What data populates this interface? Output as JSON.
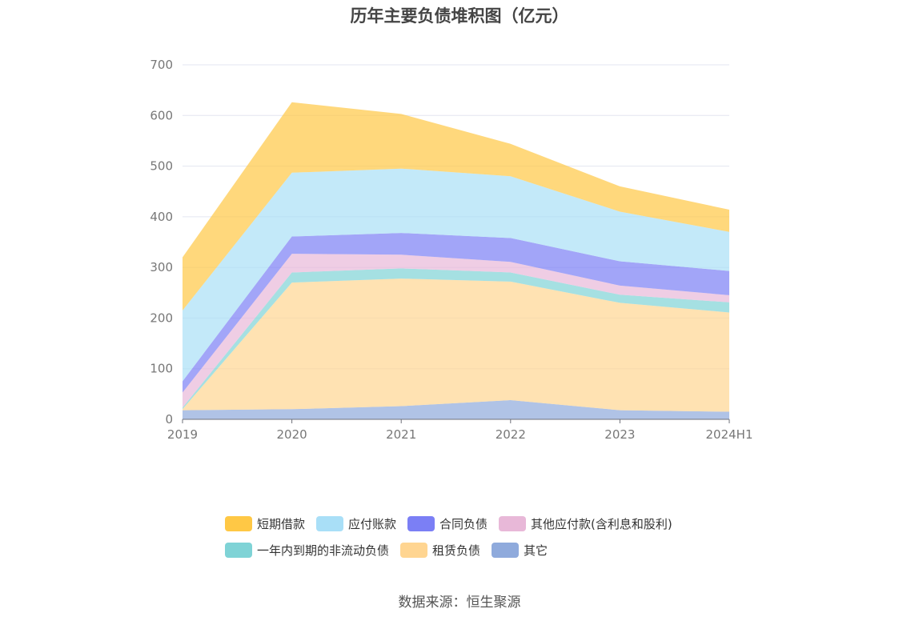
{
  "chart_data": {
    "type": "area",
    "stacked": true,
    "title": "历年主要负债堆积图（亿元）",
    "categories": [
      "2019",
      "2020",
      "2021",
      "2022",
      "2023",
      "2024H1"
    ],
    "ylim": [
      0,
      700
    ],
    "yticks": [
      "0",
      "100",
      "200",
      "300",
      "400",
      "500",
      "600",
      "700"
    ],
    "grid": true,
    "legend_position": "bottom",
    "series": [
      {
        "name": "其它",
        "color": "#8faadc",
        "values": [
          18,
          20,
          26,
          38,
          18,
          15
        ]
      },
      {
        "name": "租赁负债",
        "color": "#ffd591",
        "values": [
          2,
          250,
          252,
          234,
          212,
          196
        ]
      },
      {
        "name": "一年内到期的非流动负债",
        "color": "#7fd3d6",
        "values": [
          3,
          20,
          20,
          18,
          16,
          20
        ]
      },
      {
        "name": "其他应付款(含利息和股利)",
        "color": "#e8b8d8",
        "values": [
          30,
          37,
          27,
          21,
          18,
          14
        ]
      },
      {
        "name": "合同负债",
        "color": "#7b7ff5",
        "values": [
          22,
          34,
          43,
          47,
          48,
          48
        ]
      },
      {
        "name": "应付账款",
        "color": "#a9dff7",
        "values": [
          140,
          126,
          127,
          122,
          98,
          77
        ]
      },
      {
        "name": "短期借款",
        "color": "#ffc845",
        "values": [
          105,
          139,
          108,
          64,
          50,
          44
        ]
      }
    ]
  },
  "legend_rows": [
    [
      {
        "name": "短期借款",
        "color": "#ffc845"
      },
      {
        "name": "应付账款",
        "color": "#a9dff7"
      },
      {
        "name": "合同负债",
        "color": "#7b7ff5"
      },
      {
        "name": "其他应付款(含利息和股利)",
        "color": "#e8b8d8"
      }
    ],
    [
      {
        "name": "一年内到期的非流动负债",
        "color": "#7fd3d6"
      },
      {
        "name": "租赁负债",
        "color": "#ffd591"
      },
      {
        "name": "其它",
        "color": "#8faadc"
      }
    ]
  ],
  "source": "数据来源：恒生聚源"
}
